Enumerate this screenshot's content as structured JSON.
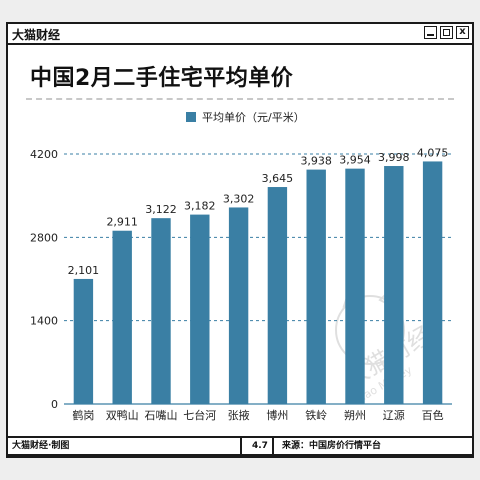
{
  "window": {
    "title": "大猫财经",
    "buttons": {
      "close": "x"
    }
  },
  "footer": {
    "credit": "大猫财经·制图",
    "date": "4.7",
    "source": "来源：中国房价行情平台"
  },
  "watermark": {
    "text": "大猫财经",
    "subtext": "Da Mao Money"
  },
  "colors": {
    "bar": "#3a7fa4",
    "grid": "#3a7fa4",
    "text": "#222222"
  },
  "chart_data": {
    "type": "bar",
    "title": "中国2月二手住宅平均单价",
    "categories": [
      "鹤岗",
      "双鸭山",
      "石嘴山",
      "七台河",
      "张掖",
      "博州",
      "铁岭",
      "朔州",
      "辽源",
      "百色"
    ],
    "series": [
      {
        "name": "平均单价（元/平米）",
        "values": [
          2101,
          2911,
          3122,
          3182,
          3302,
          3645,
          3938,
          3954,
          3998,
          4075
        ]
      }
    ],
    "data_labels": [
      "2,101",
      "2,911",
      "3,122",
      "3,182",
      "3,302",
      "3,645",
      "3,938",
      "3,954",
      "3,998",
      "4,075"
    ],
    "yticks": [
      "0",
      "1400",
      "2800",
      "4200"
    ],
    "ylim": [
      0,
      4200
    ],
    "grid": true,
    "legend_position": "top"
  }
}
